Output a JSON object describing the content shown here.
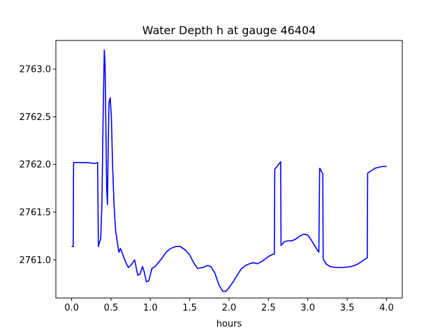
{
  "chart_data": {
    "type": "line",
    "title": "Water Depth h at gauge 46404",
    "xlabel": "hours",
    "ylabel": "",
    "xlim": [
      -0.2,
      4.2
    ],
    "ylim": [
      2760.6,
      2763.3
    ],
    "xticks": [
      0.0,
      0.5,
      1.0,
      1.5,
      2.0,
      2.5,
      3.0,
      3.5,
      4.0
    ],
    "xtick_labels": [
      "0.0",
      "0.5",
      "1.0",
      "1.5",
      "2.0",
      "2.5",
      "3.0",
      "3.5",
      "4.0"
    ],
    "yticks": [
      2761.0,
      2761.5,
      2762.0,
      2762.5,
      2763.0
    ],
    "ytick_labels": [
      "2761.0",
      "2761.5",
      "2762.0",
      "2762.5",
      "2763.0"
    ],
    "grid": false,
    "series": [
      {
        "color": "#0000ff",
        "x": [
          0.0,
          0.02,
          0.025,
          0.1,
          0.2,
          0.3,
          0.33,
          0.34,
          0.345,
          0.37,
          0.385,
          0.4,
          0.415,
          0.425,
          0.435,
          0.445,
          0.455,
          0.465,
          0.475,
          0.49,
          0.505,
          0.52,
          0.54,
          0.56,
          0.6,
          0.62,
          0.64,
          0.66,
          0.69,
          0.72,
          0.76,
          0.8,
          0.84,
          0.87,
          0.9,
          0.92,
          0.95,
          0.98,
          1.02,
          1.06,
          1.1,
          1.15,
          1.2,
          1.26,
          1.32,
          1.38,
          1.45,
          1.5,
          1.55,
          1.6,
          1.67,
          1.72,
          1.77,
          1.82,
          1.87,
          1.92,
          1.96,
          2.01,
          2.06,
          2.11,
          2.16,
          2.21,
          2.26,
          2.31,
          2.36,
          2.41,
          2.46,
          2.51,
          2.56,
          2.575,
          2.58,
          2.62,
          2.655,
          2.66,
          2.7,
          2.75,
          2.8,
          2.85,
          2.9,
          2.95,
          3.0,
          3.05,
          3.1,
          3.14,
          3.15,
          3.16,
          3.19,
          3.195,
          3.23,
          3.28,
          3.35,
          3.45,
          3.55,
          3.62,
          3.68,
          3.73,
          3.755,
          3.76,
          3.8,
          3.85,
          3.9,
          3.95,
          4.0
        ],
        "y": [
          2761.14,
          2761.14,
          2762.02,
          2762.02,
          2762.02,
          2762.01,
          2762.02,
          2761.14,
          2761.16,
          2761.22,
          2761.6,
          2762.5,
          2763.2,
          2763.05,
          2762.4,
          2761.75,
          2761.58,
          2762.2,
          2762.65,
          2762.7,
          2762.5,
          2762.0,
          2761.55,
          2761.3,
          2761.08,
          2761.12,
          2761.08,
          2761.03,
          2760.97,
          2760.92,
          2760.95,
          2761.0,
          2760.84,
          2760.85,
          2760.93,
          2760.88,
          2760.77,
          2760.78,
          2760.91,
          2760.93,
          2760.97,
          2761.02,
          2761.08,
          2761.12,
          2761.14,
          2761.14,
          2761.1,
          2761.05,
          2760.97,
          2760.91,
          2760.92,
          2760.94,
          2760.93,
          2760.86,
          2760.74,
          2760.67,
          2760.67,
          2760.72,
          2760.78,
          2760.85,
          2760.91,
          2760.94,
          2760.96,
          2760.97,
          2760.96,
          2760.98,
          2761.01,
          2761.04,
          2761.06,
          2761.06,
          2761.95,
          2761.99,
          2762.03,
          2761.15,
          2761.19,
          2761.2,
          2761.2,
          2761.22,
          2761.25,
          2761.27,
          2761.26,
          2761.2,
          2761.13,
          2761.08,
          2761.96,
          2761.95,
          2761.9,
          2761.01,
          2760.96,
          2760.93,
          2760.92,
          2760.92,
          2760.93,
          2760.95,
          2760.98,
          2761.01,
          2761.02,
          2761.91,
          2761.93,
          2761.96,
          2761.97,
          2761.98,
          2761.98
        ]
      }
    ]
  }
}
